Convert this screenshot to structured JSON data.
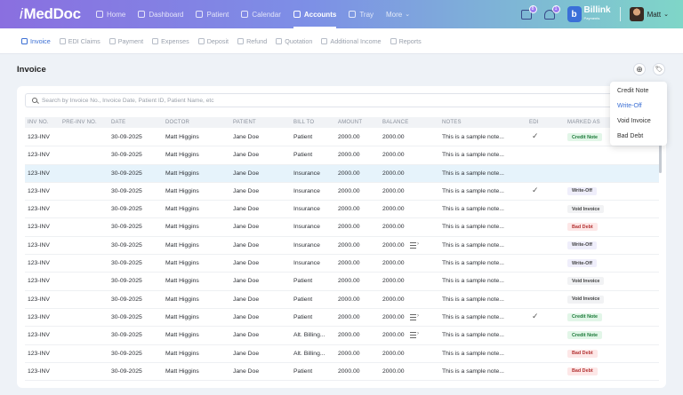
{
  "app": {
    "logo": "MedDoc"
  },
  "nav": {
    "items": [
      {
        "label": "Home",
        "icon": "home-icon"
      },
      {
        "label": "Dashboard",
        "icon": "chart-icon"
      },
      {
        "label": "Patient",
        "icon": "user-icon"
      },
      {
        "label": "Calendar",
        "icon": "calendar-icon"
      },
      {
        "label": "Accounts",
        "icon": "document-icon",
        "active": true
      },
      {
        "label": "Tray",
        "icon": "tray-icon"
      },
      {
        "label": "More",
        "icon": "chevron-down-icon"
      }
    ],
    "messages_badge": "8",
    "notifications_badge": "1",
    "brand": "Billink",
    "brand_sub": "Payments",
    "user_name": "Matt"
  },
  "subtabs": [
    {
      "label": "Invoice",
      "active": true
    },
    {
      "label": "EDI Claims"
    },
    {
      "label": "Payment"
    },
    {
      "label": "Expenses"
    },
    {
      "label": "Deposit"
    },
    {
      "label": "Refund"
    },
    {
      "label": "Quotation"
    },
    {
      "label": "Additional Income"
    },
    {
      "label": "Reports"
    }
  ],
  "page": {
    "title": "Invoice",
    "add_symbol": "⊕",
    "tag_symbol": "🏷"
  },
  "search": {
    "placeholder": "Search by Invoice No., Invoice Date, Patient ID, Patient Name, etc",
    "value": ""
  },
  "table": {
    "columns": [
      "INV NO.",
      "PRE-INV NO.",
      "DATE",
      "DOCTOR",
      "PATIENT",
      "BILL TO",
      "AMOUNT",
      "BALANCE",
      "NOTES",
      "EDI",
      "MARKED AS"
    ],
    "rows": [
      {
        "inv": "123-INV",
        "pre": "",
        "date": "30-09-2025",
        "doctor": "Matt Higgins",
        "patient": "Jane Doe",
        "bill_to": "Patient",
        "amount": "2000.00",
        "balance": "2000.00",
        "notes": "This is a sample note...",
        "edi_icon": false,
        "edi_check": true,
        "marked": "Credit Note",
        "marked_style": "green"
      },
      {
        "inv": "123-INV",
        "pre": "",
        "date": "30-09-2025",
        "doctor": "Matt Higgins",
        "patient": "Jane Doe",
        "bill_to": "Patient",
        "amount": "2000.00",
        "balance": "2000.00",
        "notes": "This is a sample note...",
        "edi_icon": false,
        "edi_check": false,
        "marked": "",
        "marked_style": ""
      },
      {
        "inv": "123-INV",
        "pre": "",
        "date": "30-09-2025",
        "doctor": "Matt Higgins",
        "patient": "Jane Doe",
        "bill_to": "Insurance",
        "amount": "2000.00",
        "balance": "2000.00",
        "notes": "This is a sample note...",
        "edi_icon": false,
        "edi_check": false,
        "marked": "",
        "marked_style": "",
        "highlight": true
      },
      {
        "inv": "123-INV",
        "pre": "",
        "date": "30-09-2025",
        "doctor": "Matt Higgins",
        "patient": "Jane Doe",
        "bill_to": "Insurance",
        "amount": "2000.00",
        "balance": "2000.00",
        "notes": "This is a sample note...",
        "edi_icon": false,
        "edi_check": true,
        "marked": "Write-Off",
        "marked_style": "purple"
      },
      {
        "inv": "123-INV",
        "pre": "",
        "date": "30-09-2025",
        "doctor": "Matt Higgins",
        "patient": "Jane Doe",
        "bill_to": "Insurance",
        "amount": "2000.00",
        "balance": "2000.00",
        "notes": "This is a sample note...",
        "edi_icon": false,
        "edi_check": false,
        "marked": "Void Invoice",
        "marked_style": "gray"
      },
      {
        "inv": "123-INV",
        "pre": "",
        "date": "30-09-2025",
        "doctor": "Matt Higgins",
        "patient": "Jane Doe",
        "bill_to": "Insurance",
        "amount": "2000.00",
        "balance": "2000.00",
        "notes": "This is a sample note...",
        "edi_icon": false,
        "edi_check": false,
        "marked": "Bad Debt",
        "marked_style": "red"
      },
      {
        "inv": "123-INV",
        "pre": "",
        "date": "30-09-2025",
        "doctor": "Matt Higgins",
        "patient": "Jane Doe",
        "bill_to": "Insurance",
        "amount": "2000.00",
        "balance": "2000.00",
        "notes": "This is a sample note...",
        "edi_icon": true,
        "edi_check": false,
        "marked": "Write-Off",
        "marked_style": "purple"
      },
      {
        "inv": "123-INV",
        "pre": "",
        "date": "30-09-2025",
        "doctor": "Matt Higgins",
        "patient": "Jane Doe",
        "bill_to": "Insurance",
        "amount": "2000.00",
        "balance": "2000.00",
        "notes": "This is a sample note...",
        "edi_icon": false,
        "edi_check": false,
        "marked": "Write-Off",
        "marked_style": "purple"
      },
      {
        "inv": "123-INV",
        "pre": "",
        "date": "30-09-2025",
        "doctor": "Matt Higgins",
        "patient": "Jane Doe",
        "bill_to": "Patient",
        "amount": "2000.00",
        "balance": "2000.00",
        "notes": "This is a sample note...",
        "edi_icon": false,
        "edi_check": false,
        "marked": "Void Invoice",
        "marked_style": "gray"
      },
      {
        "inv": "123-INV",
        "pre": "",
        "date": "30-09-2025",
        "doctor": "Matt Higgins",
        "patient": "Jane Doe",
        "bill_to": "Patient",
        "amount": "2000.00",
        "balance": "2000.00",
        "notes": "This is a sample note...",
        "edi_icon": false,
        "edi_check": false,
        "marked": "Void Invoice",
        "marked_style": "gray"
      },
      {
        "inv": "123-INV",
        "pre": "",
        "date": "30-09-2025",
        "doctor": "Matt Higgins",
        "patient": "Jane Doe",
        "bill_to": "Patient",
        "amount": "2000.00",
        "balance": "2000.00",
        "notes": "This is a sample note...",
        "edi_icon": true,
        "edi_check": true,
        "marked": "Credit Note",
        "marked_style": "green"
      },
      {
        "inv": "123-INV",
        "pre": "",
        "date": "30-09-2025",
        "doctor": "Matt Higgins",
        "patient": "Jane Doe",
        "bill_to": "Alt. Billing...",
        "amount": "2000.00",
        "balance": "2000.00",
        "notes": "This is a sample note...",
        "edi_icon": true,
        "edi_check": false,
        "marked": "Credit Note",
        "marked_style": "green"
      },
      {
        "inv": "123-INV",
        "pre": "",
        "date": "30-09-2025",
        "doctor": "Matt Higgins",
        "patient": "Jane Doe",
        "bill_to": "Alt. Billing...",
        "amount": "2000.00",
        "balance": "2000.00",
        "notes": "This is a sample note...",
        "edi_icon": false,
        "edi_check": false,
        "marked": "Bad Debt",
        "marked_style": "red"
      },
      {
        "inv": "123-INV",
        "pre": "",
        "date": "30-09-2025",
        "doctor": "Matt Higgins",
        "patient": "Jane Doe",
        "bill_to": "Patient",
        "amount": "2000.00",
        "balance": "2000.00",
        "notes": "This is a sample note...",
        "edi_icon": false,
        "edi_check": false,
        "marked": "Bad Debt",
        "marked_style": "red"
      }
    ]
  },
  "dropdown": {
    "items": [
      {
        "label": "Credit Note"
      },
      {
        "label": "Write-Off",
        "active": true
      },
      {
        "label": "Void Invoice"
      },
      {
        "label": "Bad Debt"
      }
    ]
  }
}
